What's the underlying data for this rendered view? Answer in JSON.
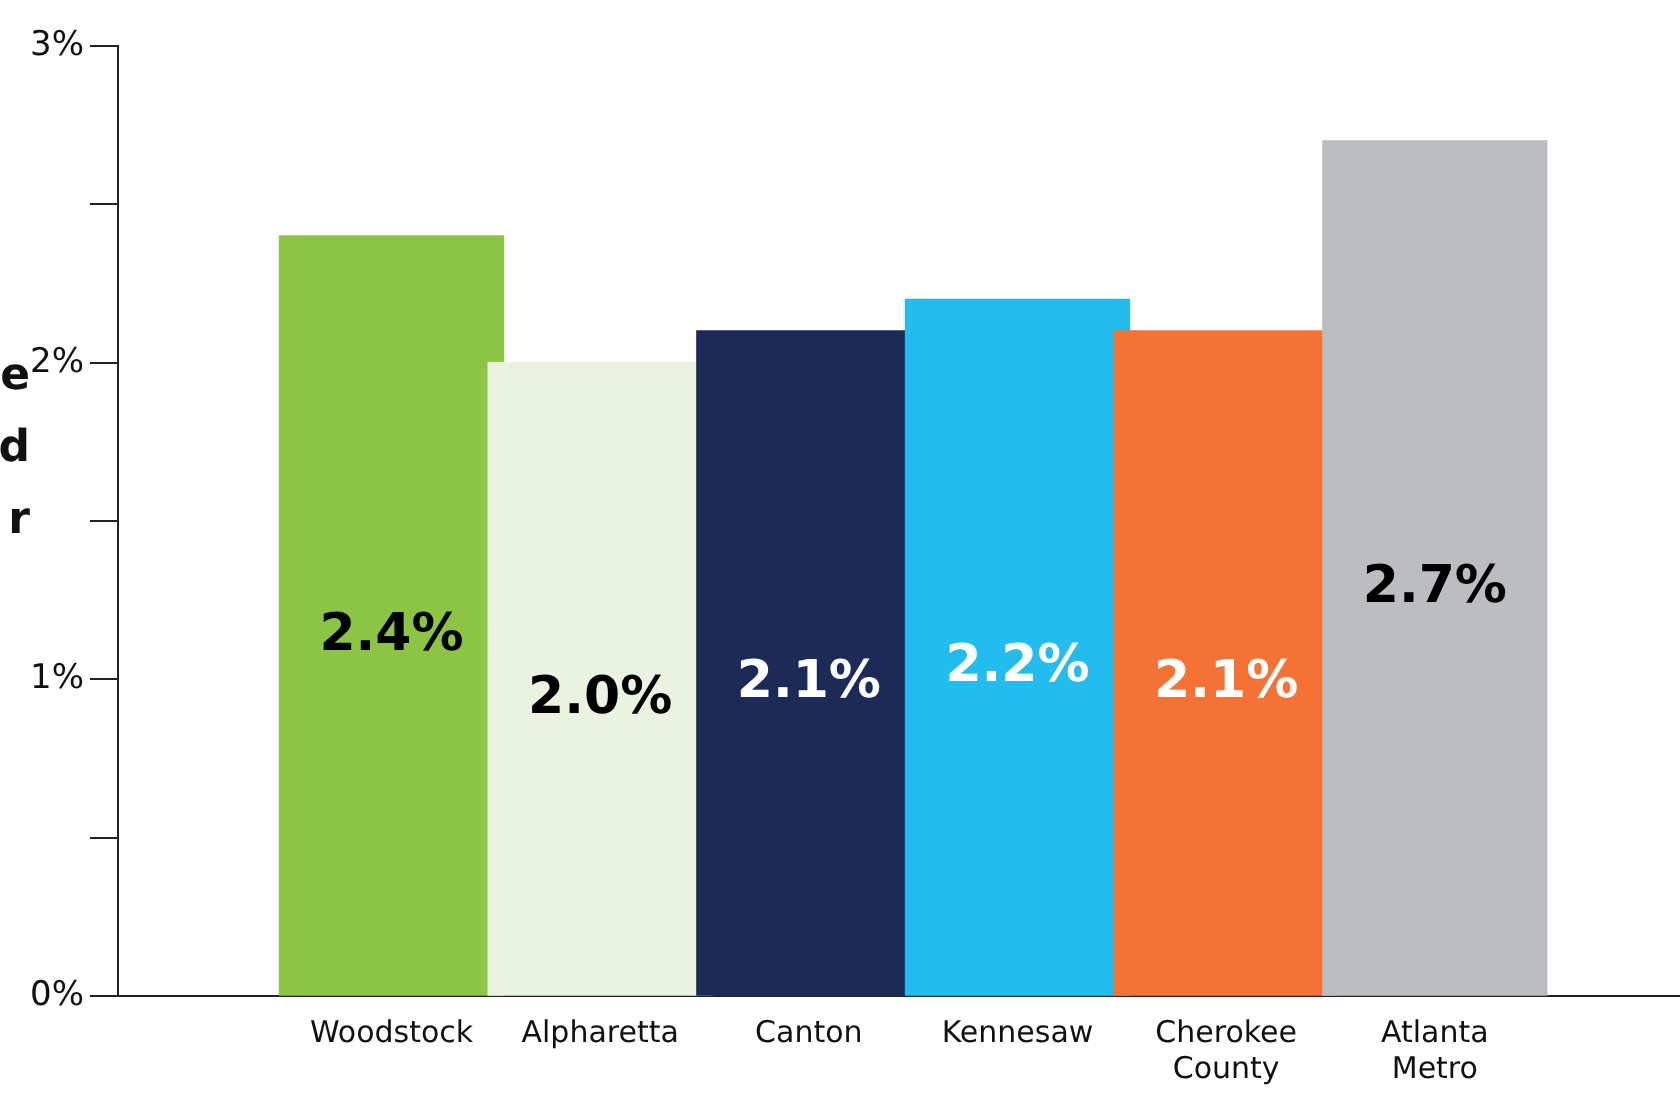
{
  "chart_data": {
    "type": "bar",
    "ylabel": "e\nd\nr",
    "categories": [
      "Woodstock",
      "Alpharetta",
      "Canton",
      "Kennesaw",
      "Cherokee County",
      "Atlanta Metro"
    ],
    "values": [
      2.4,
      2.0,
      2.1,
      2.2,
      2.1,
      2.7
    ],
    "colors": [
      "#8cc543",
      "#eaf3e0",
      "#1b2a56",
      "#22bdee",
      "#f37234",
      "#bcbdc0"
    ],
    "value_labels": [
      "2.4%",
      "2.0%",
      "2.1%",
      "2.2%",
      "2.1%",
      "2.7%"
    ],
    "ylim": [
      0,
      3
    ],
    "yticks": [
      {
        "value": 0,
        "label": "0%"
      },
      {
        "value": 0.5,
        "label": null
      },
      {
        "value": 1,
        "label": "1%"
      },
      {
        "value": 1.5,
        "label": null
      },
      {
        "value": 2,
        "label": "2%"
      },
      {
        "value": 2.5,
        "label": null
      },
      {
        "value": 3,
        "label": "3%"
      }
    ],
    "grid": false,
    "legend": false
  }
}
